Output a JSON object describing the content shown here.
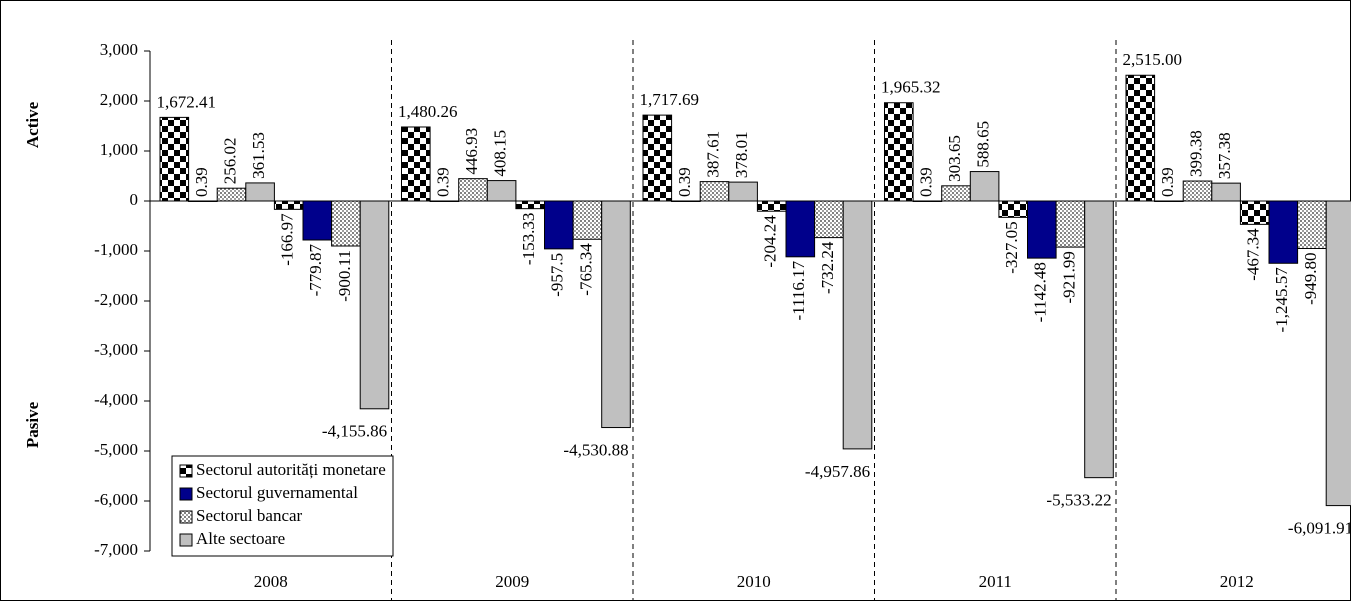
{
  "chart_data": {
    "type": "bar",
    "categories": [
      "2008",
      "2009",
      "2010",
      "2011",
      "2012"
    ],
    "y_label_top": "Active",
    "y_label_bottom": "Pasive",
    "ylim": [
      -7000,
      3000
    ],
    "yticks": [
      {
        "value": 3000,
        "label": "3,000"
      },
      {
        "value": 2000,
        "label": "2,000"
      },
      {
        "value": 1000,
        "label": "1,000"
      },
      0,
      {
        "value": -1000,
        "label": "-1,000"
      },
      {
        "value": -2000,
        "label": "-2,000"
      },
      {
        "value": -3000,
        "label": "-3,000"
      },
      {
        "value": -4000,
        "label": "-4,000"
      },
      {
        "value": -5000,
        "label": "-5,000"
      },
      {
        "value": -6000,
        "label": "-6,000"
      },
      {
        "value": -7000,
        "label": "-7,000"
      }
    ],
    "series": [
      {
        "name": "Sectorul autorități monetare",
        "pattern": "checker",
        "color": "#000000",
        "active": {
          "values": [
            1672.41,
            1480.26,
            1717.69,
            1965.32,
            2515.0
          ],
          "value_labels": [
            "1,672.41",
            "1,480.26",
            "1,717.69",
            "1,965.32",
            "2,515.00"
          ]
        },
        "pasive": {
          "values": [
            -166.97,
            -153.33,
            -204.24,
            -327.05,
            -467.34
          ],
          "value_labels": [
            "-166.97",
            "-153.33",
            "-204.24",
            "-327.05",
            "-467.34"
          ]
        }
      },
      {
        "name": "Sectorul guvernamental",
        "pattern": "solid",
        "color": "#00008b",
        "active": {
          "values": [
            0.39,
            0.39,
            0.39,
            0.39,
            0.39
          ],
          "value_labels": [
            "0.39",
            "0.39",
            "0.39",
            "0.39",
            "0.39"
          ]
        },
        "pasive": {
          "values": [
            -779.87,
            -957.5,
            -1116.17,
            -1142.48,
            -1245.57
          ],
          "value_labels": [
            "-779.87",
            "-957.5",
            "-1116.17",
            "-1142.48",
            "-1,245.57"
          ]
        }
      },
      {
        "name": "Sectorul bancar",
        "pattern": "dots",
        "color": "#808080",
        "active": {
          "values": [
            256.02,
            446.93,
            387.61,
            303.65,
            399.38
          ],
          "value_labels": [
            "256.02",
            "446.93",
            "387.61",
            "303.65",
            "399.38"
          ]
        },
        "pasive": {
          "values": [
            -900.11,
            -765.34,
            -732.24,
            -921.99,
            -949.8
          ],
          "value_labels": [
            "-900.11",
            "-765.34",
            "-732.24",
            "-921.99",
            "-949.80"
          ]
        }
      },
      {
        "name": "Alte sectoare",
        "pattern": "solid",
        "color": "#c0c0c0",
        "active": {
          "values": [
            361.53,
            408.15,
            378.01,
            588.65,
            357.38
          ],
          "value_labels": [
            "361.53",
            "408.15",
            "378.01",
            "588.65",
            "357.38"
          ]
        },
        "pasive": {
          "values": [
            -4155.86,
            -4530.88,
            -4957.86,
            -5533.22,
            -6091.91
          ],
          "value_labels": [
            "-4,155.86",
            "-4,530.88",
            "-4,957.86",
            "-5,533.22",
            "-6,091.91"
          ]
        }
      }
    ]
  }
}
